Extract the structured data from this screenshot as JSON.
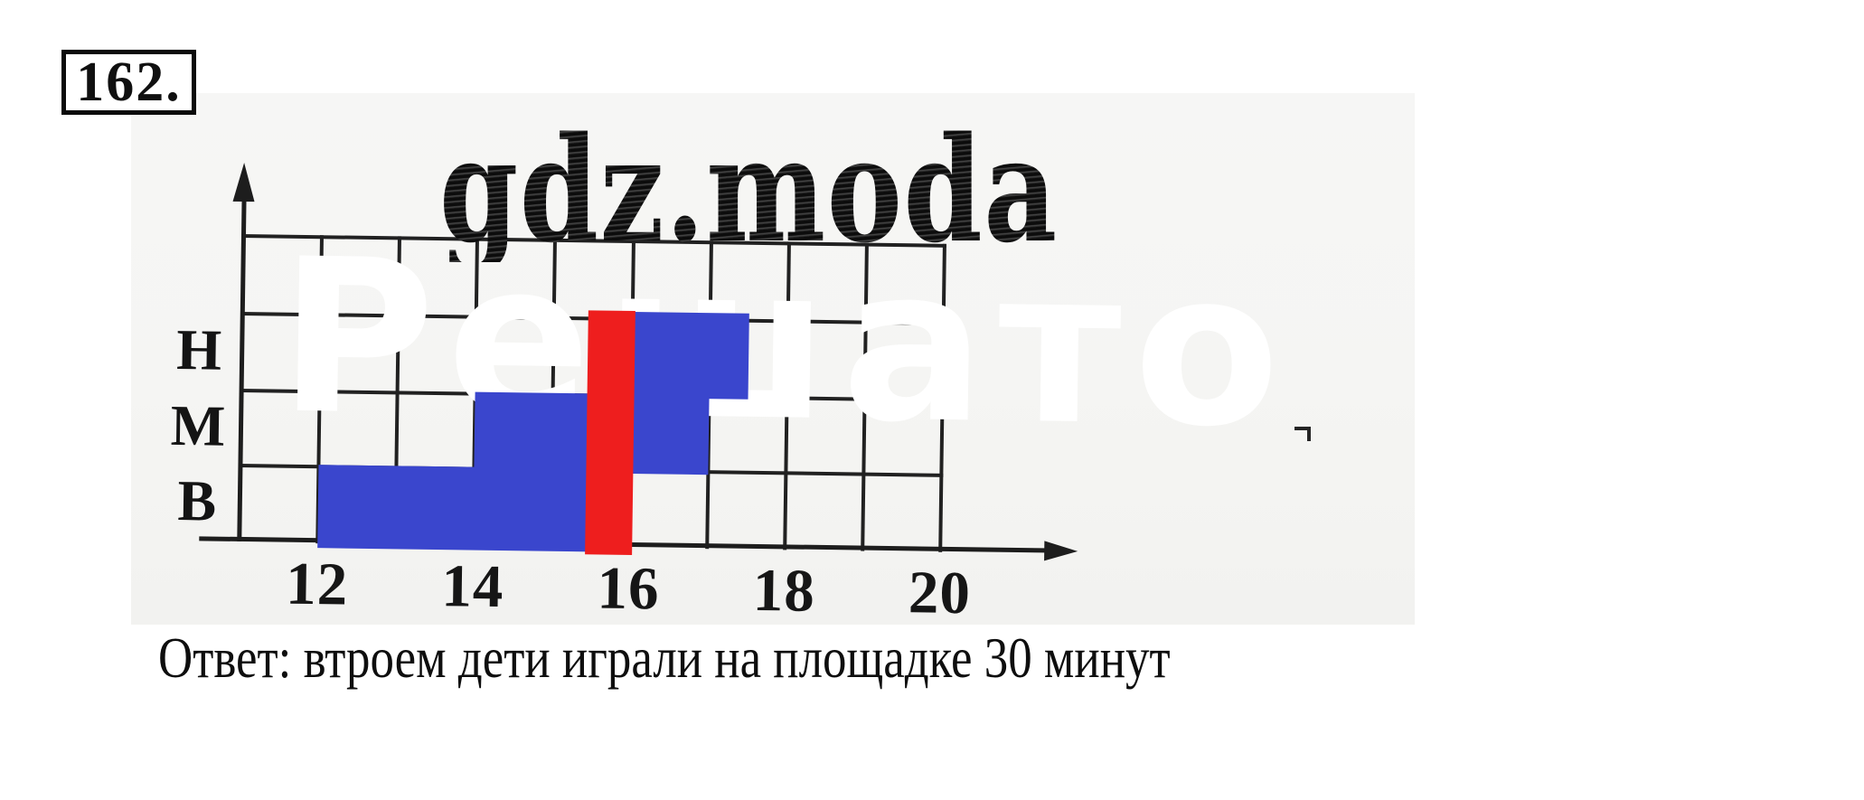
{
  "problem_box": {
    "label": "162."
  },
  "watermark": {
    "text": "gdz.moda"
  },
  "ghost_watermark": {
    "text": "Решато"
  },
  "answer": {
    "text": "Ответ: втроем дети играли на площадке 30 минут"
  },
  "colors": {
    "bar_blue": "#3a46cd",
    "overlap_red": "#ee1e1e",
    "ink": "#212121",
    "scan_background": "#f5f5f3"
  },
  "chart_data": {
    "type": "bar",
    "subtype": "interval-timeline",
    "title": "",
    "xlabel": "",
    "ylabel": "",
    "x_range_hours": [
      11,
      20
    ],
    "x_ticks": [
      12,
      14,
      16,
      18,
      20
    ],
    "x_tick_labels": [
      "12",
      "14",
      "16",
      "18",
      "20"
    ],
    "grid": true,
    "grid_rows": 4,
    "row_labels_top_to_bottom": [
      "Н",
      "М",
      "В"
    ],
    "series": [
      {
        "name": "В",
        "row": "В",
        "start_hour": 12,
        "end_hour": 16,
        "color_key": "bar_blue"
      },
      {
        "name": "М",
        "row": "М",
        "start_hour": 14,
        "end_hour": 17,
        "color_key": "bar_blue"
      },
      {
        "name": "Н",
        "row": "Н",
        "start_hour": 15.5,
        "end_hour": 17.5,
        "color_key": "bar_blue"
      }
    ],
    "overlap": {
      "start_hour": 15.5,
      "end_hour": 16,
      "spans_rows": [
        "Н",
        "М",
        "В"
      ],
      "color_key": "overlap_red",
      "duration_minutes": 30
    }
  }
}
